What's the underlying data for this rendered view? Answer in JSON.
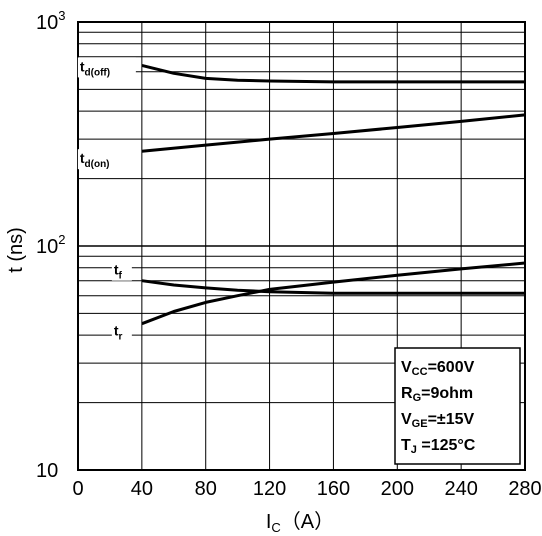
{
  "chart_data": {
    "type": "line",
    "title": "",
    "xlabel": "I",
    "xlabel_sub": "C",
    "xlabel_unit": "（A）",
    "ylabel": "t  (ns)",
    "xlim": [
      0,
      280
    ],
    "ylim": [
      10,
      1000
    ],
    "yscale": "log",
    "grid": true,
    "x_ticks": [
      0,
      40,
      80,
      120,
      160,
      200,
      240,
      280
    ],
    "x_tick_labels": [
      "0",
      "40",
      "80",
      "120",
      "160",
      "200",
      "240",
      "280"
    ],
    "y_tick_labels": [
      {
        "value": 10,
        "base": "10",
        "exp": ""
      },
      {
        "value": 100,
        "base": "10",
        "exp": "2"
      },
      {
        "value": 1000,
        "base": "10",
        "exp": "3"
      }
    ],
    "series": [
      {
        "name": "t",
        "sub": "d(off)",
        "x": [
          40,
          60,
          80,
          100,
          120,
          160,
          200,
          240,
          280
        ],
        "y": [
          640,
          590,
          560,
          550,
          545,
          540,
          540,
          540,
          540
        ]
      },
      {
        "name": "t",
        "sub": "d(on)",
        "x": [
          40,
          80,
          120,
          160,
          200,
          240,
          280
        ],
        "y": [
          265,
          282,
          300,
          318,
          338,
          360,
          385
        ]
      },
      {
        "name": "t",
        "sub": "f",
        "x": [
          40,
          60,
          80,
          100,
          120,
          160,
          200,
          240,
          280
        ],
        "y": [
          70,
          67,
          65,
          63.5,
          62.5,
          61.5,
          61.5,
          61.5,
          61.5
        ]
      },
      {
        "name": "t",
        "sub": "r",
        "x": [
          40,
          60,
          80,
          100,
          120,
          160,
          200,
          240,
          280
        ],
        "y": [
          45,
          51,
          56,
          60,
          64,
          69,
          74,
          79,
          84
        ]
      }
    ],
    "conditions": [
      {
        "main": "V",
        "sub": "CC",
        "rest": "=600V"
      },
      {
        "main": "R",
        "sub": "G",
        "rest": "=9ohm"
      },
      {
        "main": "V",
        "sub": "GE",
        "rest": "=±15V"
      },
      {
        "main": "T",
        "sub": "J",
        "rest": " =125°C"
      }
    ]
  }
}
